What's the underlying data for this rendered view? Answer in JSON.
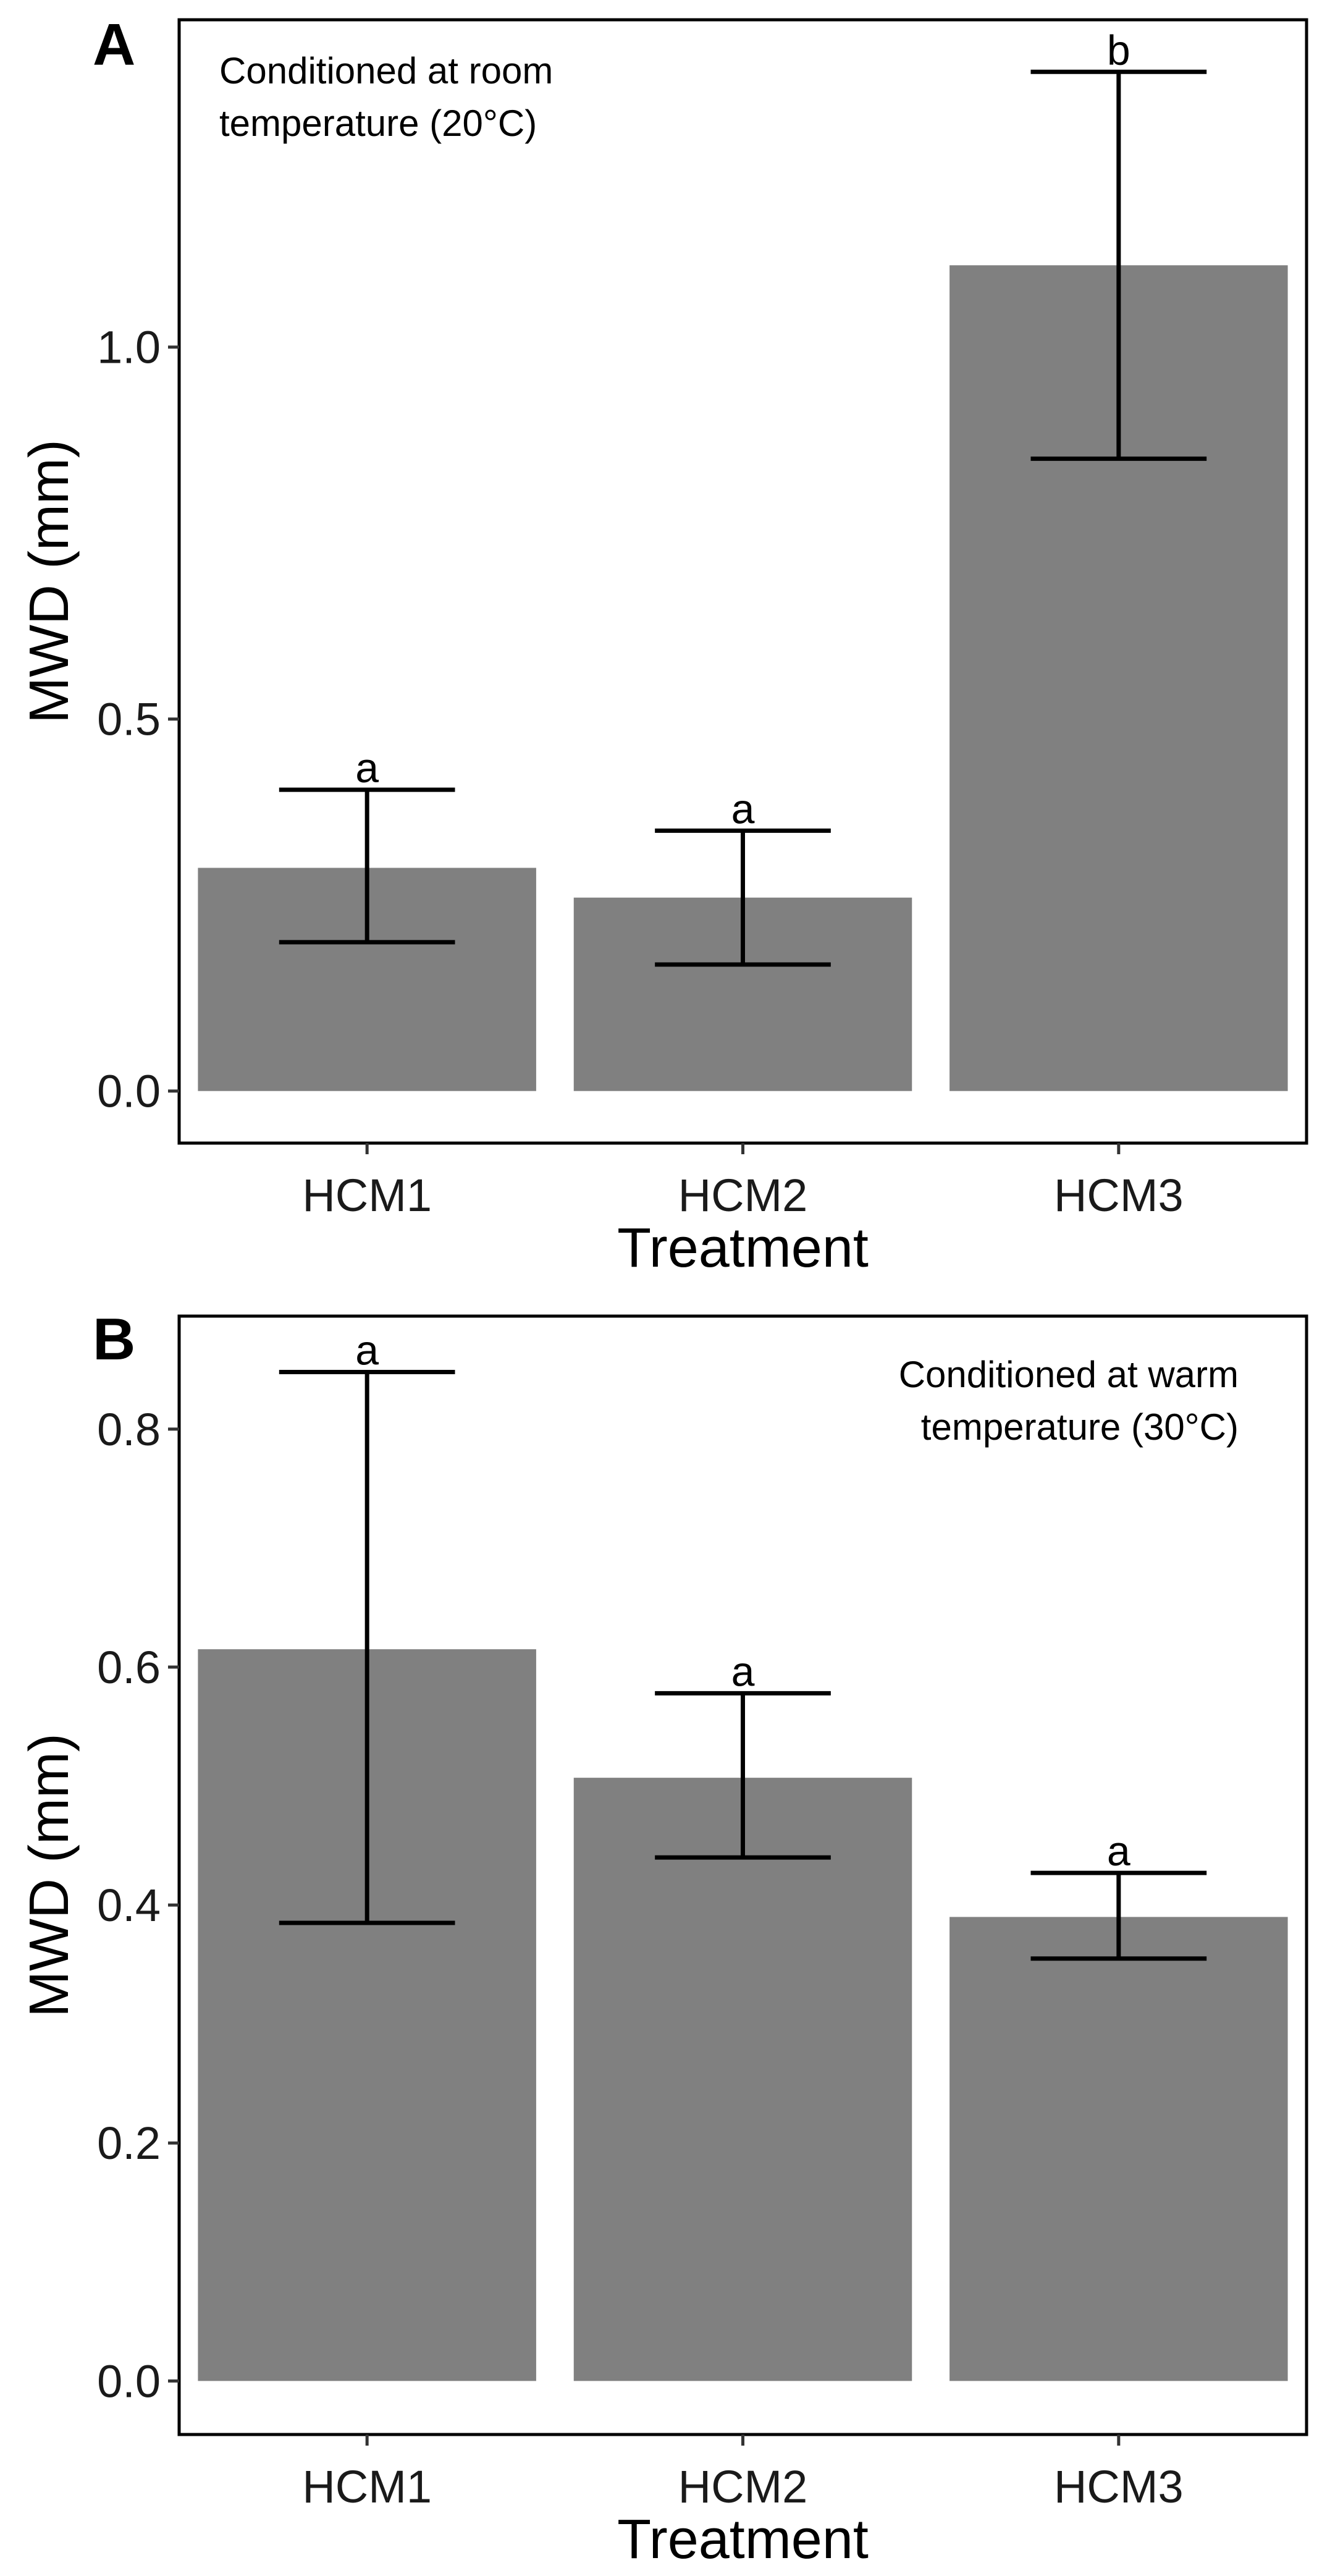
{
  "chart_data": [
    {
      "panel": "A",
      "type": "bar",
      "annotation_lines": [
        "Conditioned at room",
        "temperature (20°C)"
      ],
      "categories": [
        "HCM1",
        "HCM2",
        "HCM3"
      ],
      "values": [
        0.3,
        0.26,
        1.11
      ],
      "error_low": [
        0.2,
        0.17,
        0.85
      ],
      "error_high": [
        0.405,
        0.35,
        1.37
      ],
      "significance": [
        "a",
        "a",
        "b"
      ],
      "xlabel": "Treatment",
      "ylabel": "MWD (mm)",
      "ylim": [
        -0.07,
        1.44
      ],
      "yticks": [
        0.0,
        0.5,
        1.0
      ],
      "ytick_labels": [
        "0.0",
        "0.5",
        "1.0"
      ],
      "bar_color": "#808080",
      "grid": false
    },
    {
      "panel": "B",
      "type": "bar",
      "annotation_lines": [
        "Conditioned at warm",
        "temperature (30°C)"
      ],
      "categories": [
        "HCM1",
        "HCM2",
        "HCM3"
      ],
      "values": [
        0.615,
        0.507,
        0.39
      ],
      "error_low": [
        0.385,
        0.44,
        0.355
      ],
      "error_high": [
        0.848,
        0.578,
        0.427
      ],
      "significance": [
        "a",
        "a",
        "a"
      ],
      "xlabel": "Treatment",
      "ylabel": "MWD (mm)",
      "ylim": [
        -0.045,
        0.895
      ],
      "yticks": [
        0.0,
        0.2,
        0.4,
        0.6,
        0.8
      ],
      "ytick_labels": [
        "0.0",
        "0.2",
        "0.4",
        "0.6",
        "0.8"
      ],
      "bar_color": "#808080",
      "grid": false
    }
  ]
}
